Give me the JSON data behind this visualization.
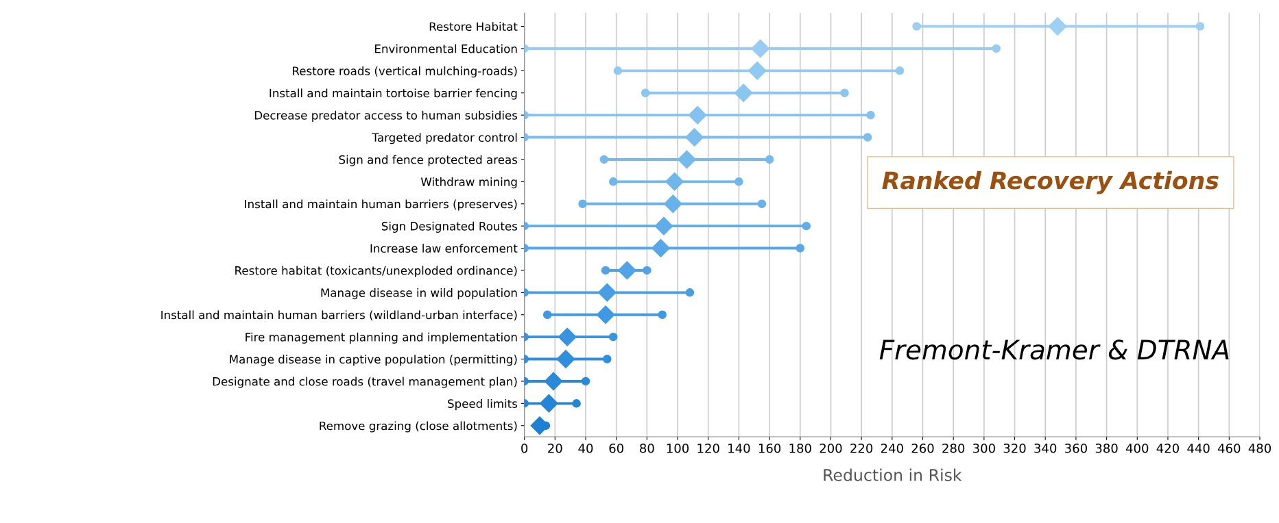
{
  "chart_data": {
    "type": "bar",
    "orientation": "horizontal",
    "title": "Ranked Recovery Actions",
    "xlabel": "Reduction in Risk",
    "annotations": [
      "Fremont-Kramer & DTRNA"
    ],
    "categories": [
      "Restore Habitat",
      "Environmental Education",
      "Restore roads (vertical mulching-roads)",
      "Install and maintain tortoise barrier fencing",
      "Decrease predator access to human subsidies",
      "Targeted predator control",
      "Sign and fence protected areas",
      "Withdraw mining",
      "Install and maintain human barriers (preserves)",
      "Sign Designated Routes",
      "Increase law enforcement",
      "Restore habitat (toxicants/unexploded ordinance)",
      "Manage disease in wild population",
      "Install and maintain human barriers (wildland-urban interface)",
      "Fire management planning and implementation",
      "Manage disease in captive population (permitting)",
      "Designate and close roads (travel management plan)",
      "Speed limits",
      "Remove grazing (close allotments)"
    ],
    "series": [
      {
        "base": [
          256,
          0,
          61,
          79,
          0,
          0,
          52,
          58,
          38,
          0,
          0,
          53,
          0,
          15,
          0,
          0,
          0,
          0,
          null
        ],
        "values": [
          185,
          308,
          184,
          130,
          226,
          224,
          108,
          82,
          117,
          184,
          180,
          27,
          108,
          75,
          58,
          54,
          40,
          34,
          null
        ],
        "colors": [
          "#9dd0f3",
          "#97cdf2",
          "#91caf1",
          "#8bc6f0",
          "#84c2ef",
          "#7dbeee",
          "#76baed",
          "#6fb6ec",
          "#68b2eb",
          "#60adea",
          "#58a8e8",
          "#50a3e6",
          "#489ee4",
          "#4099e2",
          "#3894df",
          "#308fdc",
          "#2a8ad9",
          "#2485d6",
          "#1f80d3"
        ]
      },
      {
        "type": "scatter",
        "marker": "circle",
        "values": [
          256,
          0,
          61,
          79,
          0,
          0,
          52,
          58,
          38,
          0,
          0,
          53,
          0,
          15,
          0,
          0,
          0,
          0,
          null
        ],
        "colors": [
          "#9dd0f3",
          "#97cdf2",
          "#91caf1",
          "#8bc6f0",
          "#84c2ef",
          "#7dbeee",
          "#76baed",
          "#6fb6ec",
          "#68b2eb",
          "#60adea",
          "#58a8e8",
          "#50a3e6",
          "#489ee4",
          "#4099e2",
          "#3894df",
          "#308fdc",
          "#2a8ad9",
          "#2485d6",
          "#1f80d3"
        ]
      },
      {
        "type": "scatter",
        "marker": "circle",
        "values": [
          441,
          308,
          245,
          209,
          226,
          224,
          160,
          140,
          155,
          184,
          180,
          80,
          108,
          90,
          58,
          54,
          40,
          34,
          14
        ],
        "colors": [
          "#9dd0f3",
          "#97cdf2",
          "#91caf1",
          "#8bc6f0",
          "#84c2ef",
          "#7dbeee",
          "#76baed",
          "#6fb6ec",
          "#68b2eb",
          "#60adea",
          "#58a8e8",
          "#50a3e6",
          "#489ee4",
          "#4099e2",
          "#3894df",
          "#308fdc",
          "#2a8ad9",
          "#2485d6",
          "#1f80d3"
        ]
      },
      {
        "type": "scatter",
        "marker": "diamond",
        "values": [
          348,
          154,
          152,
          143,
          113,
          111,
          106,
          98,
          97,
          91,
          89,
          67,
          54,
          53,
          28,
          27,
          19,
          16,
          10
        ],
        "colors": [
          "#9dd0f3",
          "#97cdf2",
          "#91caf1",
          "#8bc6f0",
          "#84c2ef",
          "#7dbeee",
          "#76baed",
          "#6fb6ec",
          "#68b2eb",
          "#60adea",
          "#58a8e8",
          "#50a3e6",
          "#489ee4",
          "#4099e2",
          "#3894df",
          "#308fdc",
          "#2a8ad9",
          "#2485d6",
          "#1f80d3"
        ]
      }
    ],
    "xlim": [
      0,
      480
    ],
    "xticks": [
      0,
      20,
      40,
      60,
      80,
      100,
      120,
      140,
      160,
      180,
      200,
      220,
      240,
      260,
      280,
      300,
      320,
      340,
      360,
      380,
      400,
      420,
      440,
      460,
      480
    ],
    "grid": "x"
  }
}
